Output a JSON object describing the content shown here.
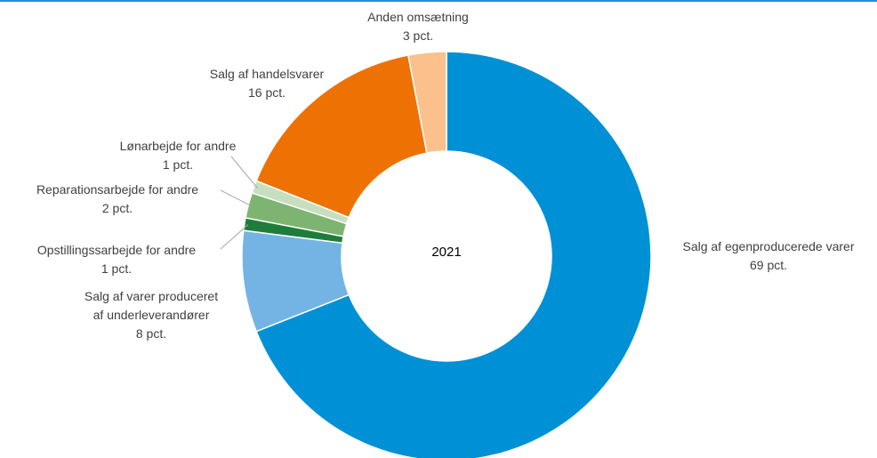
{
  "chart_data": {
    "type": "pie",
    "style": "donut",
    "center_label": "2021",
    "categories": [
      "Salg af egenproducerede varer",
      "Salg af varer produceret af underleverandører",
      "Opstillingssarbejde for andre",
      "Reparationsarbejde for andre",
      "Lønarbejde for andre",
      "Salg af handelsvarer",
      "Anden omsætning"
    ],
    "values": [
      69,
      8,
      1,
      2,
      1,
      16,
      3
    ],
    "unit": "pct.",
    "colors": [
      "#0090d5",
      "#73b4e4",
      "#1e7d3a",
      "#7db472",
      "#c6dfbe",
      "#ee7203",
      "#fbc08c"
    ],
    "labels": [
      {
        "lines": [
          "Salg af egenproducerede varer",
          "69 pct."
        ]
      },
      {
        "lines": [
          "Salg af varer produceret",
          "af  underleverandører",
          "8 pct."
        ]
      },
      {
        "lines": [
          "Opstillingssarbejde for andre",
          "1 pct."
        ]
      },
      {
        "lines": [
          "Reparationsarbejde for andre",
          "2 pct."
        ]
      },
      {
        "lines": [
          "Lønarbejde  for andre",
          "1 pct."
        ]
      },
      {
        "lines": [
          "Salg af handelsvarer",
          "16 pct."
        ]
      },
      {
        "lines": [
          "Anden omsætning",
          "3 pct."
        ]
      }
    ],
    "start": "top",
    "direction": "clockwise",
    "legend": "none"
  }
}
